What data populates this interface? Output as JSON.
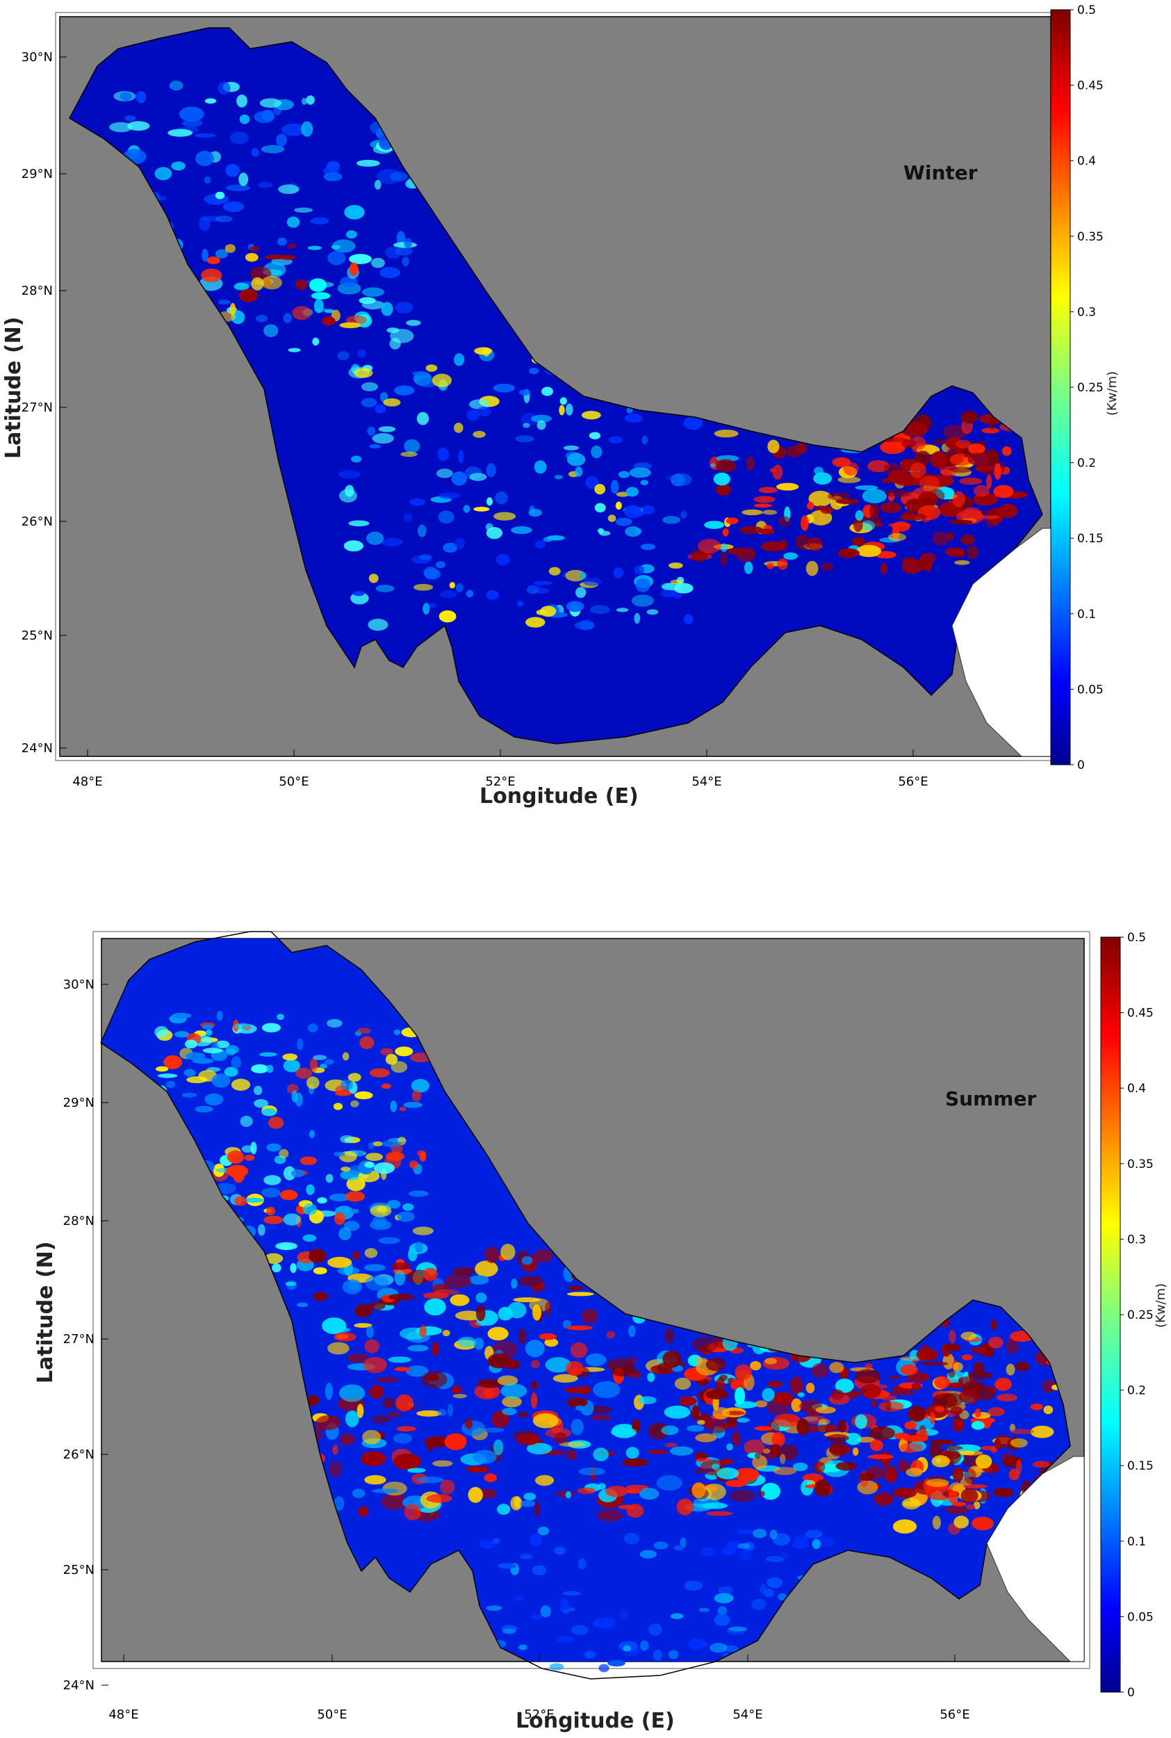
{
  "panels": [
    {
      "season": "Winter",
      "xlabel": "Longitude (E)",
      "ylabel": "Latitude (N)",
      "lon_ticks": [
        "48°E",
        "50°E",
        "52°E",
        "54°E",
        "56°E"
      ],
      "lat_ticks": [
        "30°N",
        "29°N",
        "28°N",
        "27°N",
        "26°N",
        "25°N",
        "24°N"
      ],
      "colorbar": {
        "unit": "(Kw/m)",
        "ticks": [
          "0.5",
          "0.45",
          "0.4",
          "0.35",
          "0.3",
          "0.25",
          "0.2",
          "0.15",
          "0.1",
          "0.05",
          "0"
        ],
        "range": [
          0,
          0.5
        ]
      }
    },
    {
      "season": "Summer",
      "xlabel": "Longitude (E)",
      "ylabel": "Latitude (N)",
      "lon_ticks": [
        "48°E",
        "50°E",
        "52°E",
        "54°E",
        "56°E"
      ],
      "lat_ticks": [
        "30°N",
        "29°N",
        "28°N",
        "27°N",
        "26°N",
        "25°N",
        "24°N"
      ],
      "colorbar": {
        "unit": "(Kw/m)",
        "ticks": [
          "0.5",
          "0.45",
          "0.4",
          "0.35",
          "0.3",
          "0.25",
          "0.2",
          "0.15",
          "0.1",
          "0.05",
          "0"
        ],
        "range": [
          0,
          0.5
        ]
      }
    }
  ],
  "colors": {
    "land": "#808080",
    "water_low": "#00008f",
    "water_high": "#7f0000",
    "colormap": "jet"
  }
}
